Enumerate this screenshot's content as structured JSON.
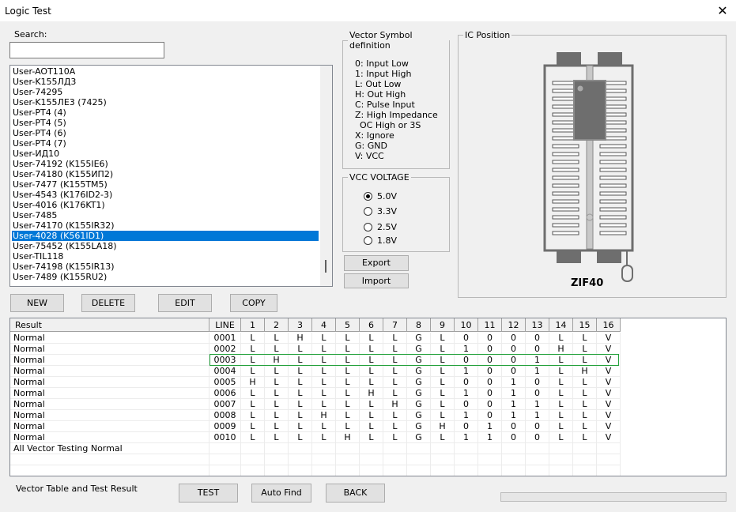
{
  "window": {
    "title": "Logic Test",
    "close_icon": "close-icon"
  },
  "search": {
    "label": "Search:",
    "value": ""
  },
  "chip_list": {
    "items": [
      "User-AOT110A",
      "User-K155ЛД3",
      "User-74295",
      "User-K155ЛЕ3 (7425)",
      "User-PT4 (4)",
      "User-PT4 (5)",
      "User-PT4 (6)",
      "User-PT4 (7)",
      "User-ИД10",
      "User-74192 (K155IE6)",
      "User-74180 (K155ИП2)",
      "User-7477 (K155TM5)",
      "User-4543 (K176ID2-3)",
      "User-4016 (K176KT1)",
      "User-7485",
      "User-74170 (K155IR32)",
      "User-4028 (K561ID1)",
      "User-75452 (K155LA18)",
      "User-TIL118",
      "User-74198 (K155IR13)",
      "User-7489 (K155RU2)"
    ],
    "selected": "User-4028 (K561ID1)",
    "selected_color": "#0078d7"
  },
  "vector_symbols": {
    "title": "Vector Symbol definition",
    "lines": [
      "0: Input Low",
      "1: Input High",
      "L: Out Low",
      "H: Out High",
      "C: Pulse Input",
      "Z: High Impedance",
      "OC High or 3S",
      "X: Ignore",
      "G: GND",
      "V: VCC"
    ]
  },
  "vcc": {
    "title": "VCC VOLTAGE",
    "options": [
      "5.0V",
      "3.3V",
      "2.5V",
      "1.8V"
    ],
    "selected": "5.0V"
  },
  "buttons": {
    "export": "Export",
    "import": "Import",
    "new": "NEW",
    "delete": "DELETE",
    "edit": "EDIT",
    "copy": "COPY",
    "test": "TEST",
    "auto_find": "Auto Find",
    "back": "BACK"
  },
  "ic_position": {
    "title": "IC Position",
    "socket_label": "ZIF40"
  },
  "result_table": {
    "headers": [
      "Result",
      "LINE",
      "1",
      "2",
      "3",
      "4",
      "5",
      "6",
      "7",
      "8",
      "9",
      "10",
      "11",
      "12",
      "13",
      "14",
      "15",
      "16"
    ],
    "rows": [
      {
        "result": "Normal",
        "line": "0001",
        "pins": [
          "L",
          "L",
          "H",
          "L",
          "L",
          "L",
          "L",
          "G",
          "L",
          "0",
          "0",
          "0",
          "0",
          "L",
          "L",
          "V"
        ]
      },
      {
        "result": "Normal",
        "line": "0002",
        "pins": [
          "L",
          "L",
          "L",
          "L",
          "L",
          "L",
          "L",
          "G",
          "L",
          "1",
          "0",
          "0",
          "0",
          "H",
          "L",
          "V"
        ]
      },
      {
        "result": "Normal",
        "line": "0003",
        "pins": [
          "L",
          "H",
          "L",
          "L",
          "L",
          "L",
          "L",
          "G",
          "L",
          "0",
          "0",
          "0",
          "1",
          "L",
          "L",
          "V"
        ]
      },
      {
        "result": "Normal",
        "line": "0004",
        "pins": [
          "L",
          "L",
          "L",
          "L",
          "L",
          "L",
          "L",
          "G",
          "L",
          "1",
          "0",
          "0",
          "1",
          "L",
          "H",
          "V"
        ]
      },
      {
        "result": "Normal",
        "line": "0005",
        "pins": [
          "H",
          "L",
          "L",
          "L",
          "L",
          "L",
          "L",
          "G",
          "L",
          "0",
          "0",
          "1",
          "0",
          "L",
          "L",
          "V"
        ]
      },
      {
        "result": "Normal",
        "line": "0006",
        "pins": [
          "L",
          "L",
          "L",
          "L",
          "L",
          "H",
          "L",
          "G",
          "L",
          "1",
          "0",
          "1",
          "0",
          "L",
          "L",
          "V"
        ]
      },
      {
        "result": "Normal",
        "line": "0007",
        "pins": [
          "L",
          "L",
          "L",
          "L",
          "L",
          "L",
          "H",
          "G",
          "L",
          "0",
          "0",
          "1",
          "1",
          "L",
          "L",
          "V"
        ]
      },
      {
        "result": "Normal",
        "line": "0008",
        "pins": [
          "L",
          "L",
          "L",
          "H",
          "L",
          "L",
          "L",
          "G",
          "L",
          "1",
          "0",
          "1",
          "1",
          "L",
          "L",
          "V"
        ]
      },
      {
        "result": "Normal",
        "line": "0009",
        "pins": [
          "L",
          "L",
          "L",
          "L",
          "L",
          "L",
          "L",
          "G",
          "H",
          "0",
          "1",
          "0",
          "0",
          "L",
          "L",
          "V"
        ]
      },
      {
        "result": "Normal",
        "line": "0010",
        "pins": [
          "L",
          "L",
          "L",
          "L",
          "H",
          "L",
          "L",
          "G",
          "L",
          "1",
          "1",
          "0",
          "0",
          "L",
          "L",
          "V"
        ]
      }
    ],
    "summary": "All Vector Testing Normal",
    "highlighted_line": "0003",
    "highlight_color": "#22a03a"
  },
  "footer": {
    "label": "Vector Table and Test Result",
    "progress": 0
  }
}
